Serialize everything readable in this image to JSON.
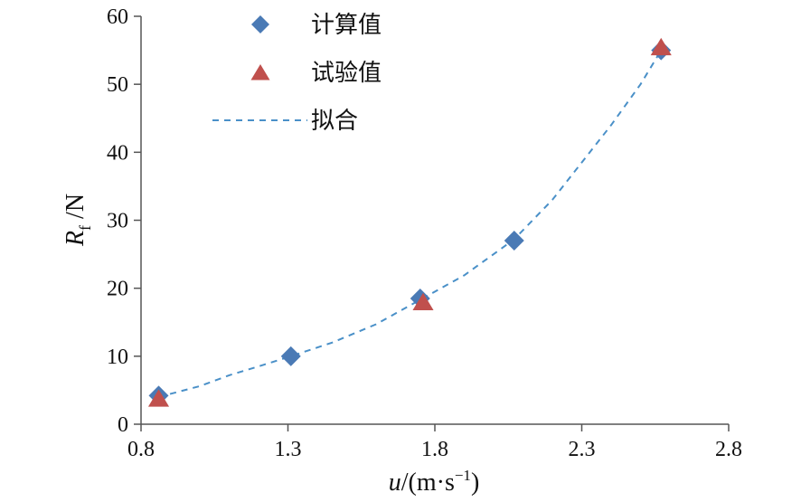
{
  "chart_data": {
    "type": "scatter",
    "x_label_main": "u",
    "x_label_unit_base": "/(m·s",
    "x_label_unit_sup": "−1",
    "x_label_unit_close": ")",
    "y_label_main": "R",
    "y_label_sub": "f",
    "y_label_unit": " /N",
    "xlim": [
      0.8,
      2.8
    ],
    "ylim": [
      0,
      60
    ],
    "x_ticks": [
      "0.8",
      "1.3",
      "1.8",
      "2.3",
      "2.8"
    ],
    "y_ticks": [
      "0",
      "10",
      "20",
      "30",
      "40",
      "50",
      "60"
    ],
    "series": [
      {
        "name": "计算值",
        "marker": "diamond",
        "color": "#4a7ab5",
        "points": [
          [
            0.86,
            4.2
          ],
          [
            1.31,
            10.0
          ],
          [
            1.75,
            18.5
          ],
          [
            2.07,
            27.0
          ],
          [
            2.57,
            55.0
          ]
        ]
      },
      {
        "name": "试验值",
        "marker": "triangle",
        "color": "#c0504d",
        "points": [
          [
            0.86,
            3.8
          ],
          [
            1.76,
            18.0
          ],
          [
            2.57,
            55.5
          ]
        ]
      },
      {
        "name": "拟合",
        "marker": "dashed-line",
        "color": "#4a90c8",
        "points": [
          [
            0.86,
            4.0
          ],
          [
            1.0,
            5.6
          ],
          [
            1.1,
            7.2
          ],
          [
            1.2,
            8.5
          ],
          [
            1.31,
            10.0
          ],
          [
            1.45,
            12.0
          ],
          [
            1.6,
            14.7
          ],
          [
            1.75,
            18.3
          ],
          [
            1.9,
            21.9
          ],
          [
            2.07,
            27.2
          ],
          [
            2.2,
            33.0
          ],
          [
            2.3,
            38.5
          ],
          [
            2.4,
            44.0
          ],
          [
            2.5,
            50.0
          ],
          [
            2.57,
            55.0
          ]
        ]
      }
    ],
    "legend_position": "top-left"
  }
}
